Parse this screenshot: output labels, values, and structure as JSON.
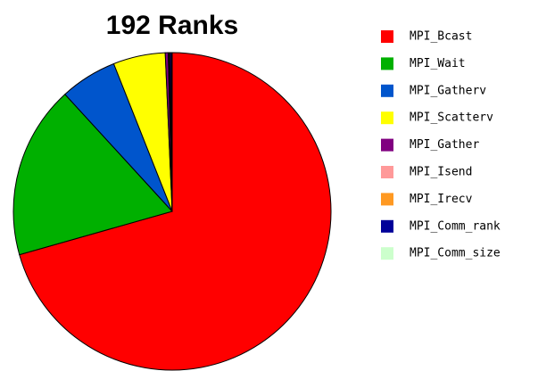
{
  "chart_data": {
    "type": "pie",
    "title": "192 Ranks",
    "categories": [
      "MPI_Bcast",
      "MPI_Wait",
      "MPI_Gatherv",
      "MPI_Scatterv",
      "MPI_Gather",
      "MPI_Isend",
      "MPI_Irecv",
      "MPI_Comm_rank",
      "MPI_Comm_size"
    ],
    "values": [
      70.6,
      17.6,
      5.8,
      5.3,
      0.3,
      0.1,
      0.1,
      0.15,
      0.05
    ],
    "colors": [
      "#ff0000",
      "#00b000",
      "#0055cc",
      "#ffff00",
      "#800080",
      "#ff9999",
      "#ff9922",
      "#000099",
      "#ccffcc"
    ],
    "legend": "right"
  }
}
